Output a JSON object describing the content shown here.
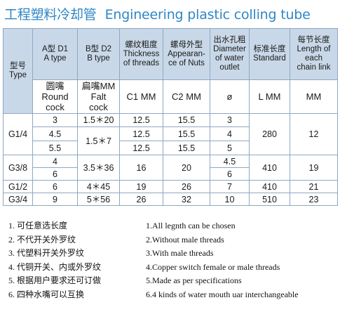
{
  "title": {
    "cn": "工程塑料冷却管",
    "en": "Engineering plastic colling tube"
  },
  "header": {
    "type": [
      "型号",
      "Type"
    ],
    "a": [
      "A型 D1",
      "A type"
    ],
    "b": [
      "B型 D2",
      "B type"
    ],
    "thread": [
      "螺纹粗度",
      "Thickness",
      "of threads"
    ],
    "nut": [
      "螺母外型",
      "Appearan-",
      "ce of Nuts"
    ],
    "outlet": [
      "出水孔粗",
      "Diameter",
      "of water",
      "outlet"
    ],
    "standard": [
      "标准长度",
      "Standard"
    ],
    "chain": [
      "每节长度",
      "Length of",
      "each",
      "chain link"
    ]
  },
  "units": {
    "a": [
      "圆嘴",
      "Round",
      "cock"
    ],
    "b": [
      "扁嘴MM",
      "Falt",
      "cock"
    ],
    "thread": "C1  MM",
    "nut": "C2  MM",
    "outlet": "ø",
    "standard": "L  MM",
    "chain": "MM"
  },
  "rows": {
    "g14": {
      "type": "G1/4",
      "a": [
        "3",
        "4.5",
        "5.5"
      ],
      "b": [
        "1.5＊20",
        "1.5＊7"
      ],
      "thread": [
        "12.5",
        "12.5",
        "12.5"
      ],
      "nut": [
        "15.5",
        "15.5",
        "15.5"
      ],
      "outlet": [
        "3",
        "4",
        "5"
      ],
      "standard": "280",
      "chain": "12"
    },
    "g38": {
      "type": "G3/8",
      "a": [
        "4",
        "6"
      ],
      "b": "3.5＊36",
      "thread": "16",
      "nut": "20",
      "outlet": [
        "4.5",
        "6"
      ],
      "standard": "410",
      "chain": "19"
    },
    "g12": {
      "type": "G1/2",
      "a": "6",
      "b": "4＊45",
      "thread": "19",
      "nut": "26",
      "outlet": "7",
      "standard": "410",
      "chain": "21"
    },
    "g34": {
      "type": "G3/4",
      "a": "9",
      "b": "5＊56",
      "thread": "26",
      "nut": "32",
      "outlet": "10",
      "standard": "510",
      "chain": "23"
    }
  },
  "notes": {
    "cn": [
      "1. 可任意选长度",
      "2. 不代开关外罗纹",
      "3. 代塑料开关外罗纹",
      "4. 代铜开关、内或外罗纹",
      "5. 根据用户要求还可订做",
      "6. 四种水嘴可以互换"
    ],
    "en": [
      "1.All legnth can be chosen",
      "2.Without male threads",
      "3.With male threads",
      "4.Copper switch female or male threads",
      "5.Made as per specifications",
      "6.4 kinds of water mouth uar interchangeable"
    ]
  },
  "colors": {
    "title": "#2f86c6",
    "header_bg": "#c9d8e8",
    "border": "#8fa7c0"
  }
}
